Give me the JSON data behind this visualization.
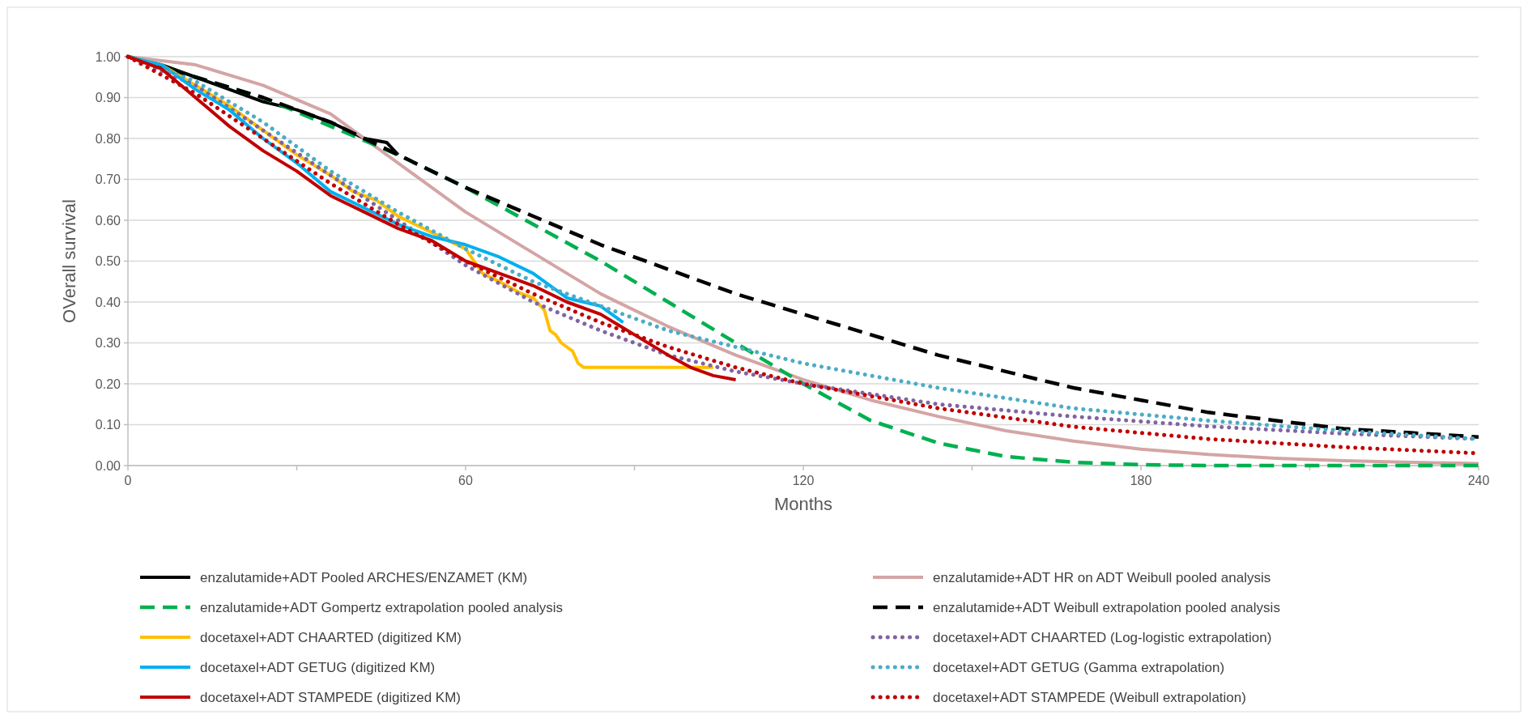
{
  "chart_data": {
    "type": "line",
    "xlabel": "Months",
    "ylabel": "OVerall survival",
    "xlim": [
      0,
      240
    ],
    "xticks": [
      0,
      {
        "value": 30,
        "label": null
      },
      60,
      {
        "value": 90,
        "label": null
      },
      120,
      {
        "value": 150,
        "label": null
      },
      180,
      {
        "value": 210,
        "label": null
      },
      240
    ],
    "ylim": [
      0,
      1
    ],
    "yticks": [
      {
        "value": 0,
        "label": "0.00"
      },
      {
        "value": 0.1,
        "label": "0.10"
      },
      {
        "value": 0.2,
        "label": "0.20"
      },
      {
        "value": 0.3,
        "label": "0.30"
      },
      {
        "value": 0.4,
        "label": "0.40"
      },
      {
        "value": 0.5,
        "label": "0.50"
      },
      {
        "value": 0.6,
        "label": "0.60"
      },
      {
        "value": 0.7,
        "label": "0.70"
      },
      {
        "value": 0.8,
        "label": "0.80"
      },
      {
        "value": 0.9,
        "label": "0.90"
      },
      {
        "value": 1,
        "label": "1.00"
      }
    ],
    "grid": "y",
    "legend": "bottom",
    "marker": "none",
    "series": [
      {
        "name": "enzalutamide+ADT Pooled ARCHES/ENZAMET (KM)",
        "color": "#000000",
        "line_style": "solid",
        "x": [
          0,
          6,
          12,
          18,
          24,
          30,
          36,
          42,
          46,
          48
        ],
        "values": [
          1.0,
          0.98,
          0.95,
          0.92,
          0.89,
          0.87,
          0.84,
          0.8,
          0.79,
          0.76
        ]
      },
      {
        "name": "enzalutamide+ADT HR on ADT Weibull pooled analysis",
        "color": "#d4a5a5",
        "line_style": "solid",
        "x": [
          0,
          12,
          24,
          36,
          48,
          60,
          72,
          84,
          96,
          108,
          120,
          132,
          144,
          156,
          168,
          180,
          192,
          204,
          216,
          228,
          240
        ],
        "values": [
          1.0,
          0.98,
          0.93,
          0.86,
          0.74,
          0.62,
          0.52,
          0.42,
          0.34,
          0.27,
          0.21,
          0.16,
          0.12,
          0.085,
          0.06,
          0.04,
          0.027,
          0.018,
          0.012,
          0.008,
          0.005
        ]
      },
      {
        "name": "enzalutamide+ADT Gompertz extrapolation pooled analysis",
        "color": "#00b050",
        "line_style": "dashed",
        "x": [
          0,
          12,
          24,
          36,
          48,
          60,
          72,
          84,
          96,
          108,
          120,
          132,
          144,
          156,
          168,
          180,
          192,
          216,
          240
        ],
        "values": [
          1.0,
          0.95,
          0.9,
          0.83,
          0.76,
          0.68,
          0.59,
          0.5,
          0.4,
          0.3,
          0.2,
          0.11,
          0.055,
          0.022,
          0.008,
          0.002,
          0.0,
          0.0,
          0.0
        ]
      },
      {
        "name": "enzalutamide+ADT Weibull extrapolation pooled analysis",
        "color": "#000000",
        "line_style": "dashed",
        "x": [
          0,
          12,
          24,
          36,
          48,
          60,
          72,
          84,
          96,
          108,
          120,
          132,
          144,
          156,
          168,
          180,
          192,
          204,
          216,
          228,
          240
        ],
        "values": [
          1.0,
          0.95,
          0.9,
          0.84,
          0.76,
          0.68,
          0.61,
          0.54,
          0.48,
          0.42,
          0.37,
          0.32,
          0.27,
          0.23,
          0.19,
          0.16,
          0.13,
          0.11,
          0.09,
          0.08,
          0.07
        ]
      },
      {
        "name": "docetaxel+ADT CHAARTED (digitized KM)",
        "color": "#ffc000",
        "line_style": "solid",
        "x": [
          0,
          6,
          12,
          18,
          24,
          30,
          36,
          40,
          44,
          48,
          54,
          60,
          63,
          66,
          70,
          72,
          74,
          75,
          76,
          77,
          79,
          80,
          81,
          104
        ],
        "values": [
          1.0,
          0.98,
          0.93,
          0.88,
          0.82,
          0.76,
          0.71,
          0.67,
          0.65,
          0.61,
          0.57,
          0.53,
          0.47,
          0.45,
          0.42,
          0.41,
          0.38,
          0.33,
          0.32,
          0.3,
          0.28,
          0.25,
          0.24,
          0.24
        ]
      },
      {
        "name": "docetaxel+ADT CHAARTED (Log-logistic extrapolation)",
        "color": "#8064a2",
        "line_style": "dotted",
        "x": [
          0,
          12,
          24,
          36,
          48,
          60,
          72,
          84,
          96,
          108,
          120,
          144,
          168,
          192,
          216,
          240
        ],
        "values": [
          1.0,
          0.93,
          0.82,
          0.71,
          0.6,
          0.49,
          0.4,
          0.33,
          0.27,
          0.23,
          0.2,
          0.15,
          0.12,
          0.096,
          0.078,
          0.065
        ]
      },
      {
        "name": "docetaxel+ADT GETUG (digitized KM)",
        "color": "#00b0f0",
        "line_style": "solid",
        "x": [
          0,
          6,
          12,
          18,
          24,
          30,
          36,
          42,
          48,
          54,
          60,
          66,
          72,
          78,
          84,
          88
        ],
        "values": [
          1.0,
          0.98,
          0.92,
          0.87,
          0.8,
          0.74,
          0.67,
          0.63,
          0.59,
          0.56,
          0.54,
          0.51,
          0.47,
          0.41,
          0.39,
          0.35
        ]
      },
      {
        "name": "docetaxel+ADT GETUG (Gamma extrapolation)",
        "color": "#4bacc6",
        "line_style": "dotted",
        "x": [
          0,
          12,
          24,
          36,
          48,
          60,
          72,
          84,
          96,
          108,
          120,
          144,
          168,
          192,
          216,
          240
        ],
        "values": [
          1.0,
          0.94,
          0.84,
          0.72,
          0.62,
          0.53,
          0.45,
          0.39,
          0.33,
          0.29,
          0.25,
          0.19,
          0.14,
          0.11,
          0.085,
          0.065
        ]
      },
      {
        "name": "docetaxel+ADT STAMPEDE (digitized KM)",
        "color": "#c00000",
        "line_style": "solid",
        "x": [
          0,
          6,
          12,
          18,
          24,
          30,
          36,
          42,
          48,
          54,
          60,
          66,
          72,
          78,
          84,
          90,
          96,
          100,
          104,
          108
        ],
        "values": [
          1.0,
          0.97,
          0.9,
          0.83,
          0.77,
          0.72,
          0.66,
          0.62,
          0.58,
          0.55,
          0.5,
          0.47,
          0.44,
          0.4,
          0.37,
          0.32,
          0.27,
          0.24,
          0.22,
          0.21
        ]
      },
      {
        "name": "docetaxel+ADT STAMPEDE (Weibull extrapolation)",
        "color": "#c00000",
        "line_style": "dotted",
        "x": [
          0,
          12,
          24,
          36,
          48,
          60,
          72,
          84,
          96,
          108,
          120,
          144,
          168,
          192,
          216,
          240
        ],
        "values": [
          1.0,
          0.91,
          0.8,
          0.69,
          0.59,
          0.5,
          0.42,
          0.35,
          0.29,
          0.24,
          0.2,
          0.14,
          0.095,
          0.065,
          0.045,
          0.03
        ]
      }
    ]
  }
}
